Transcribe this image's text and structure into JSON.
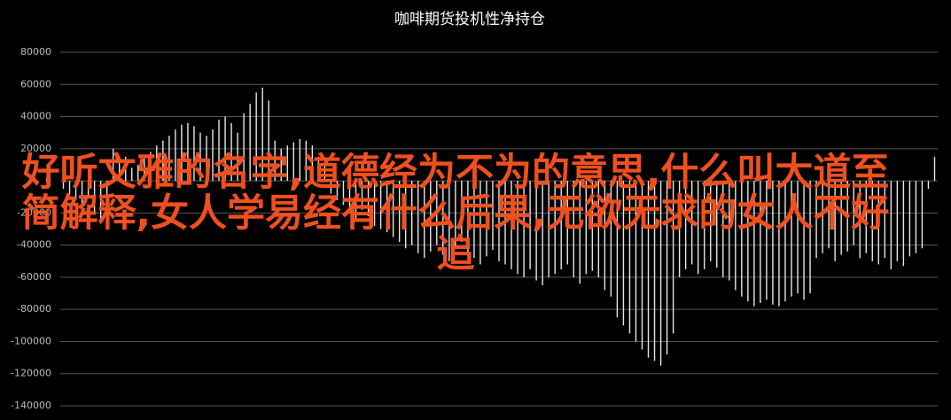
{
  "chart_data": {
    "type": "bar",
    "title": "咖啡期货投机性净持仓",
    "values": [
      -5000,
      -8000,
      -12000,
      -15000,
      -10000,
      -20000,
      -25000,
      -18000,
      20000,
      12000,
      15000,
      8000,
      10000,
      14000,
      18000,
      22000,
      25000,
      28000,
      32000,
      35000,
      36000,
      34000,
      30000,
      28000,
      32000,
      38000,
      40000,
      36000,
      30000,
      42000,
      48000,
      55000,
      58000,
      50000,
      25000,
      20000,
      22000,
      24000,
      26000,
      25000,
      22000,
      15000,
      10000,
      -8000,
      -12000,
      -15000,
      -20000,
      -25000,
      -18000,
      -22000,
      -28000,
      -30000,
      -32000,
      -35000,
      -38000,
      -42000,
      -40000,
      -45000,
      -48000,
      -44000,
      -40000,
      -46000,
      -50000,
      -42000,
      -38000,
      -45000,
      -48000,
      -52000,
      -47000,
      -43000,
      -50000,
      -52000,
      -55000,
      -58000,
      -60000,
      -55000,
      -62000,
      -65000,
      -60000,
      -58000,
      -55000,
      -52000,
      -60000,
      -64000,
      -58000,
      -56000,
      -60000,
      -68000,
      -72000,
      -85000,
      -90000,
      -95000,
      -100000,
      -105000,
      -110000,
      -112000,
      -115000,
      -108000,
      -95000,
      -60000,
      -55000,
      -52000,
      -58000,
      -55000,
      -50000,
      -54000,
      -60000,
      -62000,
      -68000,
      -72000,
      -75000,
      -78000,
      -76000,
      -74000,
      -77000,
      -78000,
      -75000,
      -72000,
      -70000,
      -74000,
      -70000,
      -48000,
      -45000,
      -42000,
      -50000,
      -46000,
      -44000,
      -40000,
      -48000,
      -45000,
      -50000,
      -52000,
      -48000,
      -55000,
      -50000,
      -53000,
      -47000,
      -45000,
      -42000,
      -5000,
      15000
    ],
    "color": "#e6e6e6",
    "ylim": [
      -140000,
      80000
    ],
    "yticks": [
      -140000,
      -120000,
      -100000,
      -80000,
      -60000,
      -40000,
      -20000,
      0,
      20000,
      40000,
      60000,
      80000
    ],
    "grid": true
  },
  "overlay_text": "好听文雅的名字,道德经为不为的意思,什么叫大道至简解释,女人学易经有什么后果,无欲无求的女人不好追"
}
